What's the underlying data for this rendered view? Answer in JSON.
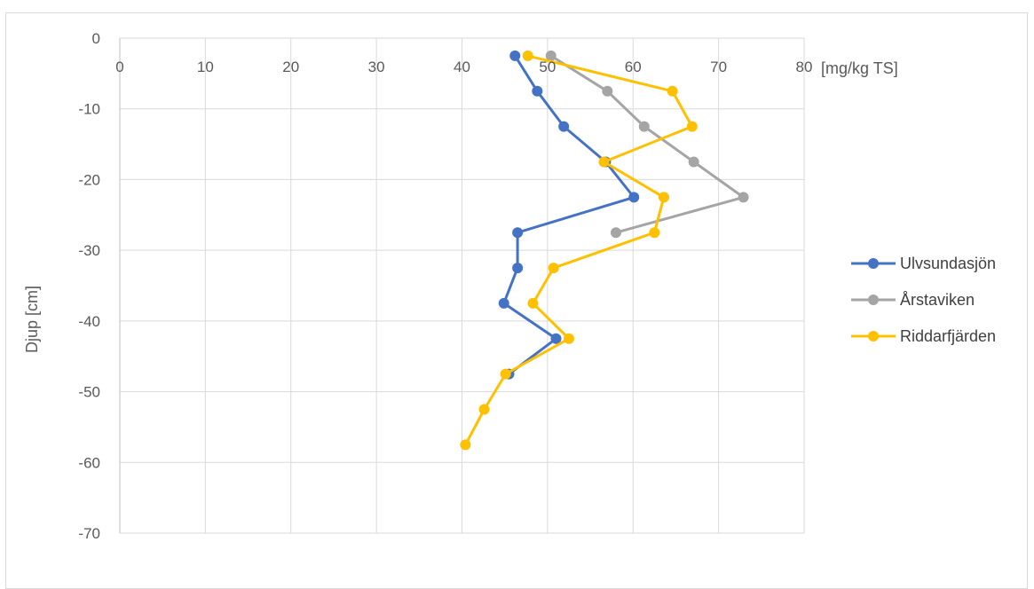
{
  "chart_data": {
    "type": "line",
    "xlabel": "[mg/kg TS]",
    "ylabel": "Djup [cm]",
    "xlim": [
      0,
      80
    ],
    "ylim": [
      -70,
      0
    ],
    "x_ticks": [
      "0",
      "10",
      "20",
      "30",
      "40",
      "50",
      "60",
      "70",
      "80"
    ],
    "y_ticks": [
      "0",
      "-10",
      "-20",
      "-30",
      "-40",
      "-50",
      "-60",
      "-70"
    ],
    "grid": true,
    "legend_position": "right",
    "series": [
      {
        "name": "Ulvsundasjön",
        "color": "#4472C4",
        "points": [
          [
            46.2,
            -2.5
          ],
          [
            48.8,
            -7.5
          ],
          [
            51.9,
            -12.5
          ],
          [
            56.8,
            -17.5
          ],
          [
            60.1,
            -22.5
          ],
          [
            46.5,
            -27.5
          ],
          [
            46.5,
            -32.5
          ],
          [
            44.9,
            -37.5
          ],
          [
            51.0,
            -42.5
          ],
          [
            45.5,
            -47.5
          ]
        ]
      },
      {
        "name": "Årstaviken",
        "color": "#A5A5A5",
        "points": [
          [
            50.4,
            -2.5
          ],
          [
            57.0,
            -7.5
          ],
          [
            61.3,
            -12.5
          ],
          [
            67.1,
            -17.5
          ],
          [
            72.9,
            -22.5
          ],
          [
            58.0,
            -27.5
          ]
        ]
      },
      {
        "name": "Riddarfjärden",
        "color": "#FFC000",
        "points": [
          [
            47.7,
            -2.5
          ],
          [
            64.6,
            -7.5
          ],
          [
            66.9,
            -12.5
          ],
          [
            56.6,
            -17.5
          ],
          [
            63.6,
            -22.5
          ],
          [
            62.5,
            -27.5
          ],
          [
            50.7,
            -32.5
          ],
          [
            48.3,
            -37.5
          ],
          [
            52.5,
            -42.5
          ],
          [
            45.1,
            -47.5
          ],
          [
            42.6,
            -52.5
          ],
          [
            40.4,
            -57.5
          ]
        ]
      }
    ]
  }
}
